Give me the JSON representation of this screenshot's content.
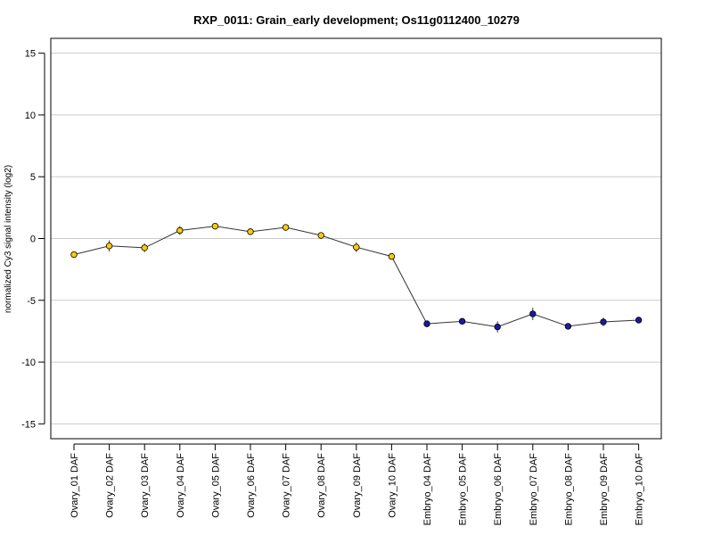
{
  "chart_data": {
    "type": "line",
    "title": "RXP_0011: Grain_early development; Os11g0112400_10279",
    "ylabel": "normalized Cy3 signal intensity (log2)",
    "xlabel": "",
    "ylim": [
      -16.2,
      16.2
    ],
    "yticks": [
      -15,
      -10,
      -5,
      0,
      5,
      10,
      15
    ],
    "grid": true,
    "categories": [
      "Ovary_01 DAF",
      "Ovary_02 DAF",
      "Ovary_03 DAF",
      "Ovary_04 DAF",
      "Ovary_05 DAF",
      "Ovary_06 DAF",
      "Ovary_07 DAF",
      "Ovary_08 DAF",
      "Ovary_09 DAF",
      "Ovary_10 DAF",
      "Embryo_04 DAF",
      "Embryo_05 DAF",
      "Embryo_06 DAF",
      "Embryo_07 DAF",
      "Embryo_08 DAF",
      "Embryo_09 DAF",
      "Embryo_10 DAF"
    ],
    "values": [
      -1.3,
      -0.6,
      -0.75,
      0.65,
      1.0,
      0.55,
      0.9,
      0.25,
      -0.7,
      -1.45,
      -6.9,
      -6.7,
      -7.15,
      -6.1,
      -7.1,
      -6.75,
      -6.6
    ],
    "errors": [
      0.25,
      0.45,
      0.35,
      0.35,
      0.2,
      0.2,
      0.25,
      0.2,
      0.4,
      0.2,
      0.2,
      0.2,
      0.45,
      0.5,
      0.2,
      0.35,
      0.2
    ],
    "point_colors": [
      "#ffcc00",
      "#ffcc00",
      "#ffcc00",
      "#ffcc00",
      "#ffcc00",
      "#ffcc00",
      "#ffcc00",
      "#ffcc00",
      "#ffcc00",
      "#ffcc00",
      "#1a1aa6",
      "#1a1aa6",
      "#1a1aa6",
      "#1a1aa6",
      "#1a1aa6",
      "#1a1aa6",
      "#1a1aa6"
    ]
  }
}
